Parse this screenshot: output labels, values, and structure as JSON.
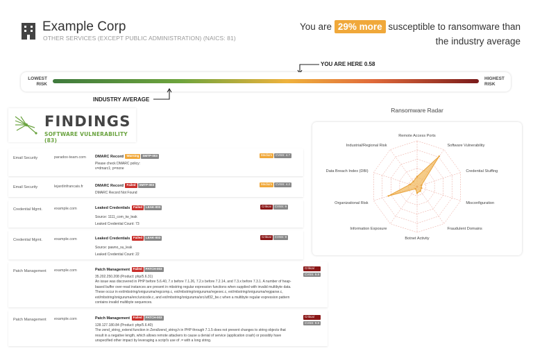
{
  "company": {
    "name": "Example Corp",
    "naics": "OTHER SERVICES (EXCEPT PUBLIC ADMINISTRATION) (NAICS: 81)"
  },
  "headline": {
    "prefix": "You are",
    "percent": "29% more",
    "suffix": "susceptible to ransomware than the industry average"
  },
  "risk_scale": {
    "lowest_line1": "LOWEST",
    "lowest_line2": "RISK",
    "highest_line1": "HIGHEST",
    "highest_line2": "RISK",
    "you_are_here": "YOU ARE HERE 0.58",
    "you_are_here_value": 0.58,
    "industry_average": "INDUSTRY AVERAGE",
    "colors": [
      "#3f7a3d",
      "#6ea43d",
      "#efb23d",
      "#e06a3a",
      "#7a1b1b"
    ]
  },
  "findings": {
    "title": "FINDINGS",
    "subtitle": "SOFTWARE VULNERABILITY (83)",
    "rows": [
      {
        "category": "Email Security",
        "asset": "paradox-team.com",
        "title": "DMARC Record",
        "status": "Warning",
        "code": "SMTP-003",
        "details": [
          "Please check DMARC policy:",
          "v=dmarc1; p=none"
        ],
        "severity": "Medium",
        "cvss": "CVSS: 4.7"
      },
      {
        "category": "Email Security",
        "asset": "lejardinfrancais.fr",
        "title": "DMARC Record",
        "status": "Failed",
        "code": "SMTP-003",
        "details": [
          "DMARC Record Not Found"
        ],
        "severity": "Medium",
        "cvss": "CVSS: 4.2"
      },
      {
        "category": "Credential Mgmt.",
        "asset": "example.com",
        "title": "Leaked Credentials",
        "status": "Failed",
        "code": "LEAK-003",
        "details": [
          "Source: 1111_com_tw_leak",
          "Leaked Credential Count: 73"
        ],
        "severity": "Critical",
        "cvss": "CVSS: 9"
      },
      {
        "category": "Credential Mgmt.",
        "asset": "example.com",
        "title": "Leaked Credentials",
        "status": "Failed",
        "code": "LEAK-003",
        "details": [
          "Source: pawno_su_leak",
          "Leaked Credential Count: 22"
        ],
        "severity": "Critical",
        "cvss": "CVSS: 9"
      },
      {
        "category": "Patch Management",
        "asset": "example.com",
        "title": "Patch Management",
        "status": "Failed",
        "code": "PATCH-003",
        "details": [
          "35.202.250.208 (Product: php/5.6.31)",
          "An issue was discovered in PHP before 5.6.40, 7.x before 7.1.26, 7.2.x before 7.2.14, and 7.3.x before 7.3.1. A number of heap-based buffer over-read instances are present in mbstring regular expression functions when supplied with invalid multibyte data. These occur in ext/mbstring/oniguruma/regcomp.c, ext/mbstring/oniguruma/regexec.c, ext/mbstring/oniguruma/regparse.c, ext/mbstring/oniguruma/enc/unicode.c, and ext/mbstring/oniguruma/src/utf32_be.c when a multibyte regular expression pattern contains invalid multibyte sequences."
        ],
        "severity": "Critical",
        "cvss": "CVSS: 9.8"
      },
      {
        "category": "Patch Management",
        "asset": "example.com",
        "title": "Patch Management",
        "status": "Failed",
        "code": "PATCH-003",
        "details": [
          "128.127.180.84 (Product: php/5.6.40)",
          "The zend_string_extend function in Zend/zend_string.h in PHP through 7.1.5 does not prevent changes to string objects that result in a negative length, which allows remote attackers to cause a denial of service (application crash) or possibly have unspecified other impact by leveraging a script's use of .= with a long string."
        ],
        "severity": "Critical",
        "cvss": "CVSS: 9.8"
      }
    ]
  },
  "radar": {
    "title": "Ransomware Radar",
    "chart_data": {
      "type": "radar",
      "categories": [
        "Remote Access Ports",
        "Software Vulnerability",
        "Credential Stuffing",
        "Misconfiguration",
        "Fraudulent Domains",
        "Botnet Activity",
        "Information Exposure",
        "Organizational Risk",
        "Data Breach Index (DBI)",
        "Industrial/Regional Risk"
      ],
      "values": [
        0.22,
        0.82,
        0.1,
        0.1,
        0.12,
        0.14,
        0.06,
        0.66,
        0.16,
        0.14
      ],
      "range": [
        0,
        1
      ],
      "rings": 5,
      "fill_color": "#f0b04a",
      "grid_color": "#e07a6a"
    }
  }
}
